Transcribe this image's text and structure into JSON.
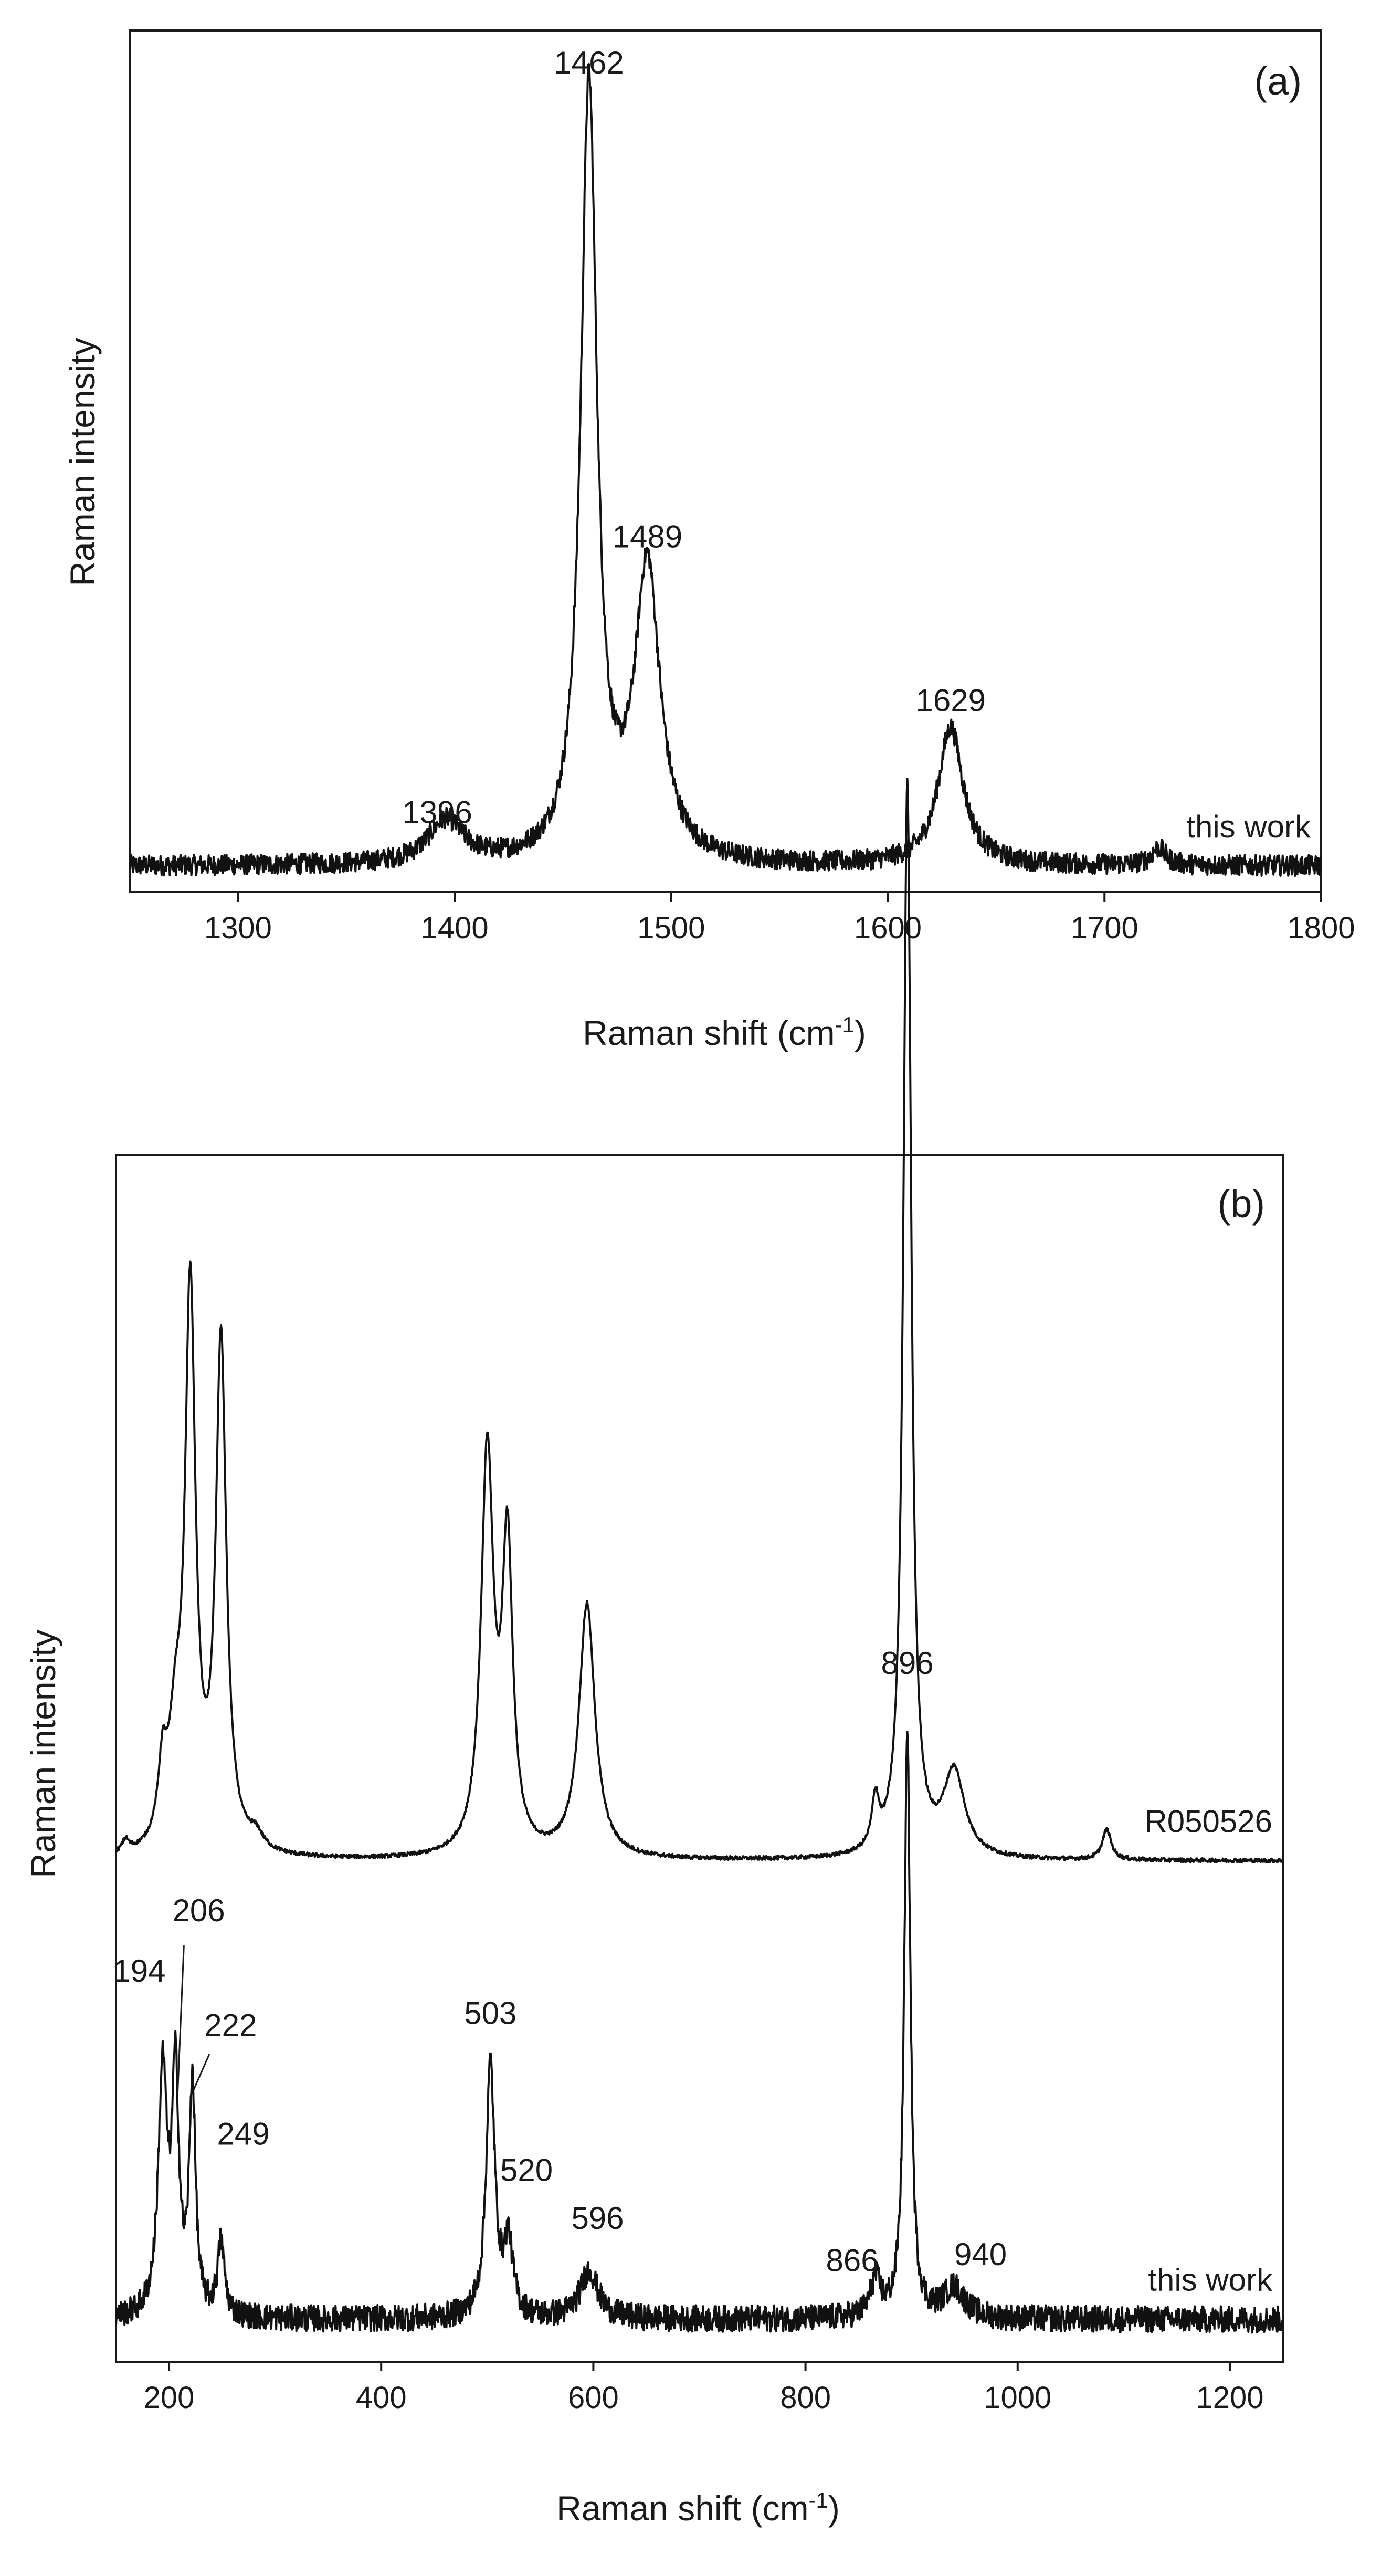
{
  "chart_data": [
    {
      "type": "line",
      "panel_label": "(a)",
      "xlabel": "Raman shift (cm⁻¹)",
      "xlabel_base": "Raman shift (cm",
      "xlabel_sup": "-1",
      "xlabel_close": ")",
      "ylabel": "Raman intensity",
      "xlim": [
        1250,
        1800
      ],
      "x_ticks": [
        1300,
        1400,
        1500,
        1600,
        1700,
        1800
      ],
      "y_ticks_labeled": false,
      "grid": false,
      "series": [
        {
          "name": "this work",
          "baseline": 0.03,
          "peaks": [
            {
              "x": 1396,
              "height": 0.05,
              "width": 10
            },
            {
              "x": 1462,
              "height": 0.9,
              "width": 4.5
            },
            {
              "x": 1489,
              "height": 0.34,
              "width": 7
            },
            {
              "x": 1629,
              "height": 0.16,
              "width": 7
            },
            {
              "x": 1725,
              "height": 0.02,
              "width": 4
            }
          ]
        }
      ],
      "annotations": [
        {
          "text": "1462",
          "x": 1462,
          "y": 0.95
        },
        {
          "text": "1489",
          "x": 1489,
          "y": 0.4
        },
        {
          "text": "1629",
          "x": 1629,
          "y": 0.21
        },
        {
          "text": "1396",
          "x": 1392,
          "y": 0.08
        }
      ]
    },
    {
      "type": "line",
      "panel_label": "(b)",
      "xlabel": "Raman shift (cm⁻¹)",
      "xlabel_base": "Raman shift (cm",
      "xlabel_sup": "-1",
      "xlabel_close": ")",
      "ylabel": "Raman intensity",
      "xlim": [
        150,
        1250
      ],
      "x_ticks": [
        200,
        400,
        600,
        800,
        1000,
        1200
      ],
      "y_ticks_labeled": false,
      "grid": false,
      "series": [
        {
          "name": "R050526",
          "baseline": 0.415,
          "peaks": [
            {
              "x": 159,
              "height": 0.01,
              "width": 4
            },
            {
              "x": 194,
              "height": 0.06,
              "width": 5
            },
            {
              "x": 206,
              "height": 0.08,
              "width": 7
            },
            {
              "x": 220,
              "height": 0.46,
              "width": 6
            },
            {
              "x": 249,
              "height": 0.42,
              "width": 6
            },
            {
              "x": 282,
              "height": 0.012,
              "width": 8
            },
            {
              "x": 500,
              "height": 0.33,
              "width": 7
            },
            {
              "x": 519,
              "height": 0.25,
              "width": 6
            },
            {
              "x": 594,
              "height": 0.21,
              "width": 9
            },
            {
              "x": 866,
              "height": 0.04,
              "width": 4
            },
            {
              "x": 896,
              "height": 0.89,
              "width": 4.5
            },
            {
              "x": 940,
              "height": 0.07,
              "width": 12
            },
            {
              "x": 1084,
              "height": 0.025,
              "width": 5
            }
          ]
        },
        {
          "name": "this work",
          "baseline": 0.035,
          "peaks": [
            {
              "x": 194,
              "height": 0.2,
              "width": 5
            },
            {
              "x": 206,
              "height": 0.19,
              "width": 4
            },
            {
              "x": 222,
              "height": 0.19,
              "width": 3.5
            },
            {
              "x": 249,
              "height": 0.06,
              "width": 4
            },
            {
              "x": 503,
              "height": 0.21,
              "width": 5
            },
            {
              "x": 520,
              "height": 0.06,
              "width": 5
            },
            {
              "x": 596,
              "height": 0.04,
              "width": 10
            },
            {
              "x": 866,
              "height": 0.03,
              "width": 6
            },
            {
              "x": 896,
              "height": 0.48,
              "width": 3.5
            },
            {
              "x": 940,
              "height": 0.025,
              "width": 12
            }
          ]
        }
      ],
      "annotations": [
        {
          "text": "896",
          "x": 896,
          "y": 0.57
        },
        {
          "text": "206",
          "x": 228,
          "y": 0.365
        },
        {
          "text": "194",
          "x": 172,
          "y": 0.315
        },
        {
          "text": "222",
          "x": 258,
          "y": 0.27
        },
        {
          "text": "503",
          "x": 503,
          "y": 0.28
        },
        {
          "text": "249",
          "x": 270,
          "y": 0.18
        },
        {
          "text": "520",
          "x": 537,
          "y": 0.15
        },
        {
          "text": "596",
          "x": 604,
          "y": 0.11
        },
        {
          "text": "866",
          "x": 844,
          "y": 0.075
        },
        {
          "text": "940",
          "x": 965,
          "y": 0.08
        }
      ]
    }
  ]
}
